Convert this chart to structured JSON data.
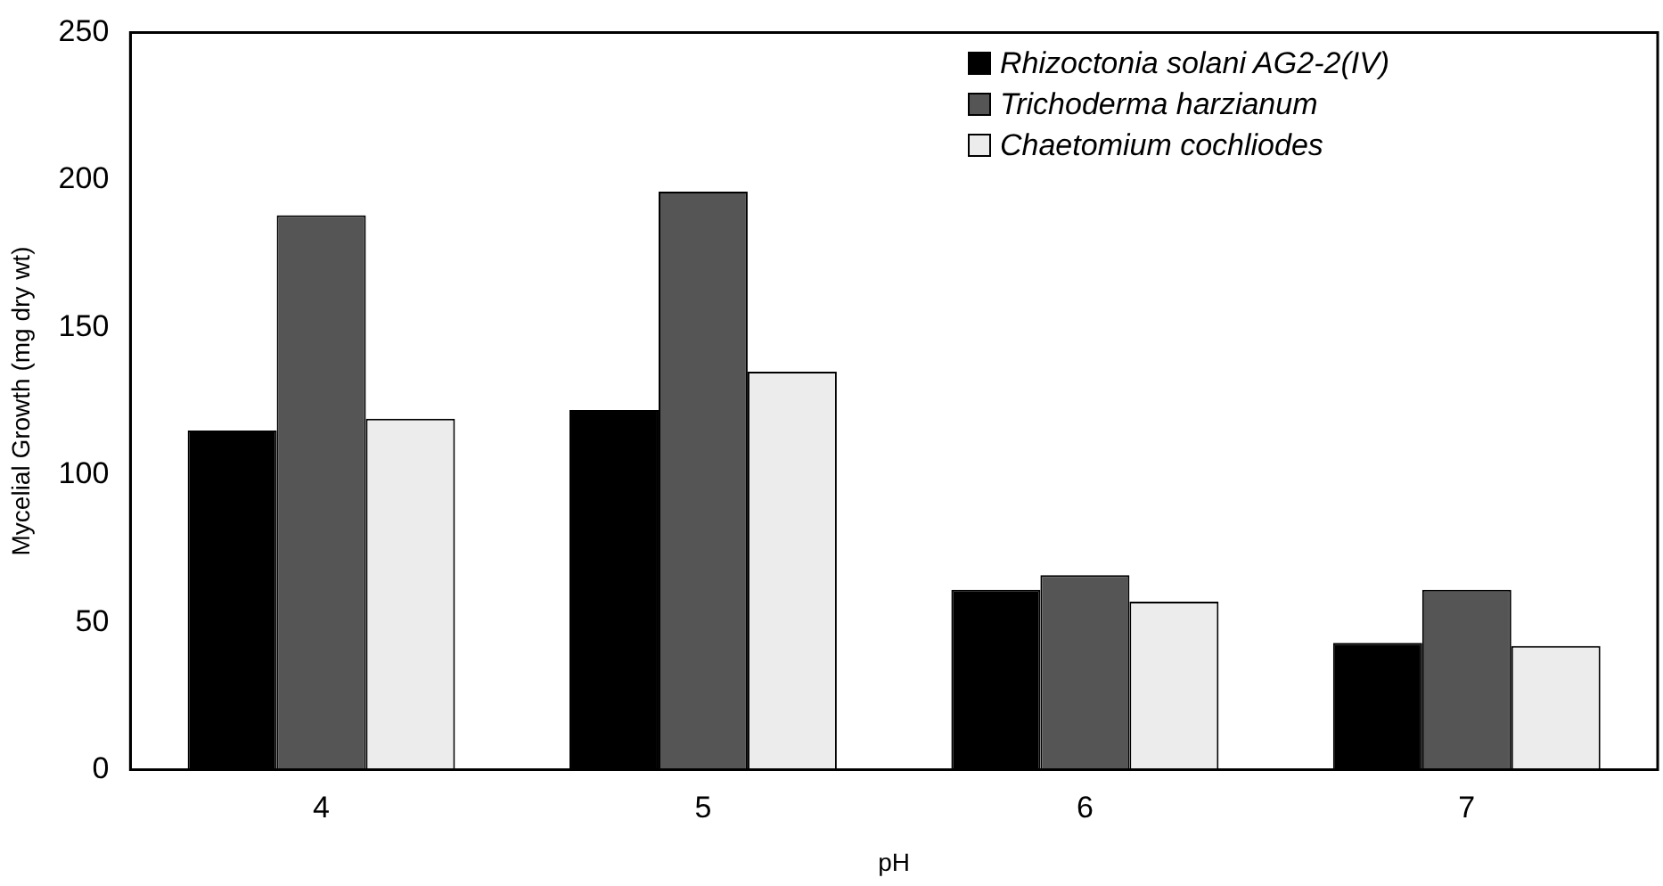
{
  "chart_data": {
    "type": "bar",
    "xlabel": "pH",
    "ylabel": "Mycelial Growth (mg dry wt)",
    "categories": [
      "4",
      "5",
      "6",
      "7"
    ],
    "series": [
      {
        "name": "Rhizoctonia solani AG2-2(IV)",
        "color": "#000000",
        "values": [
          115,
          122,
          61,
          43
        ]
      },
      {
        "name": "Trichoderma harzianum",
        "color": "#555555",
        "values": [
          188,
          196,
          66,
          61
        ]
      },
      {
        "name": "Chaetomium cochliodes",
        "color": "#ececec",
        "values": [
          119,
          135,
          57,
          42
        ]
      }
    ],
    "ylim": [
      0,
      250
    ],
    "yticks": [
      0,
      50,
      100,
      150,
      200,
      250
    ],
    "grid": false,
    "legend": "top right"
  }
}
